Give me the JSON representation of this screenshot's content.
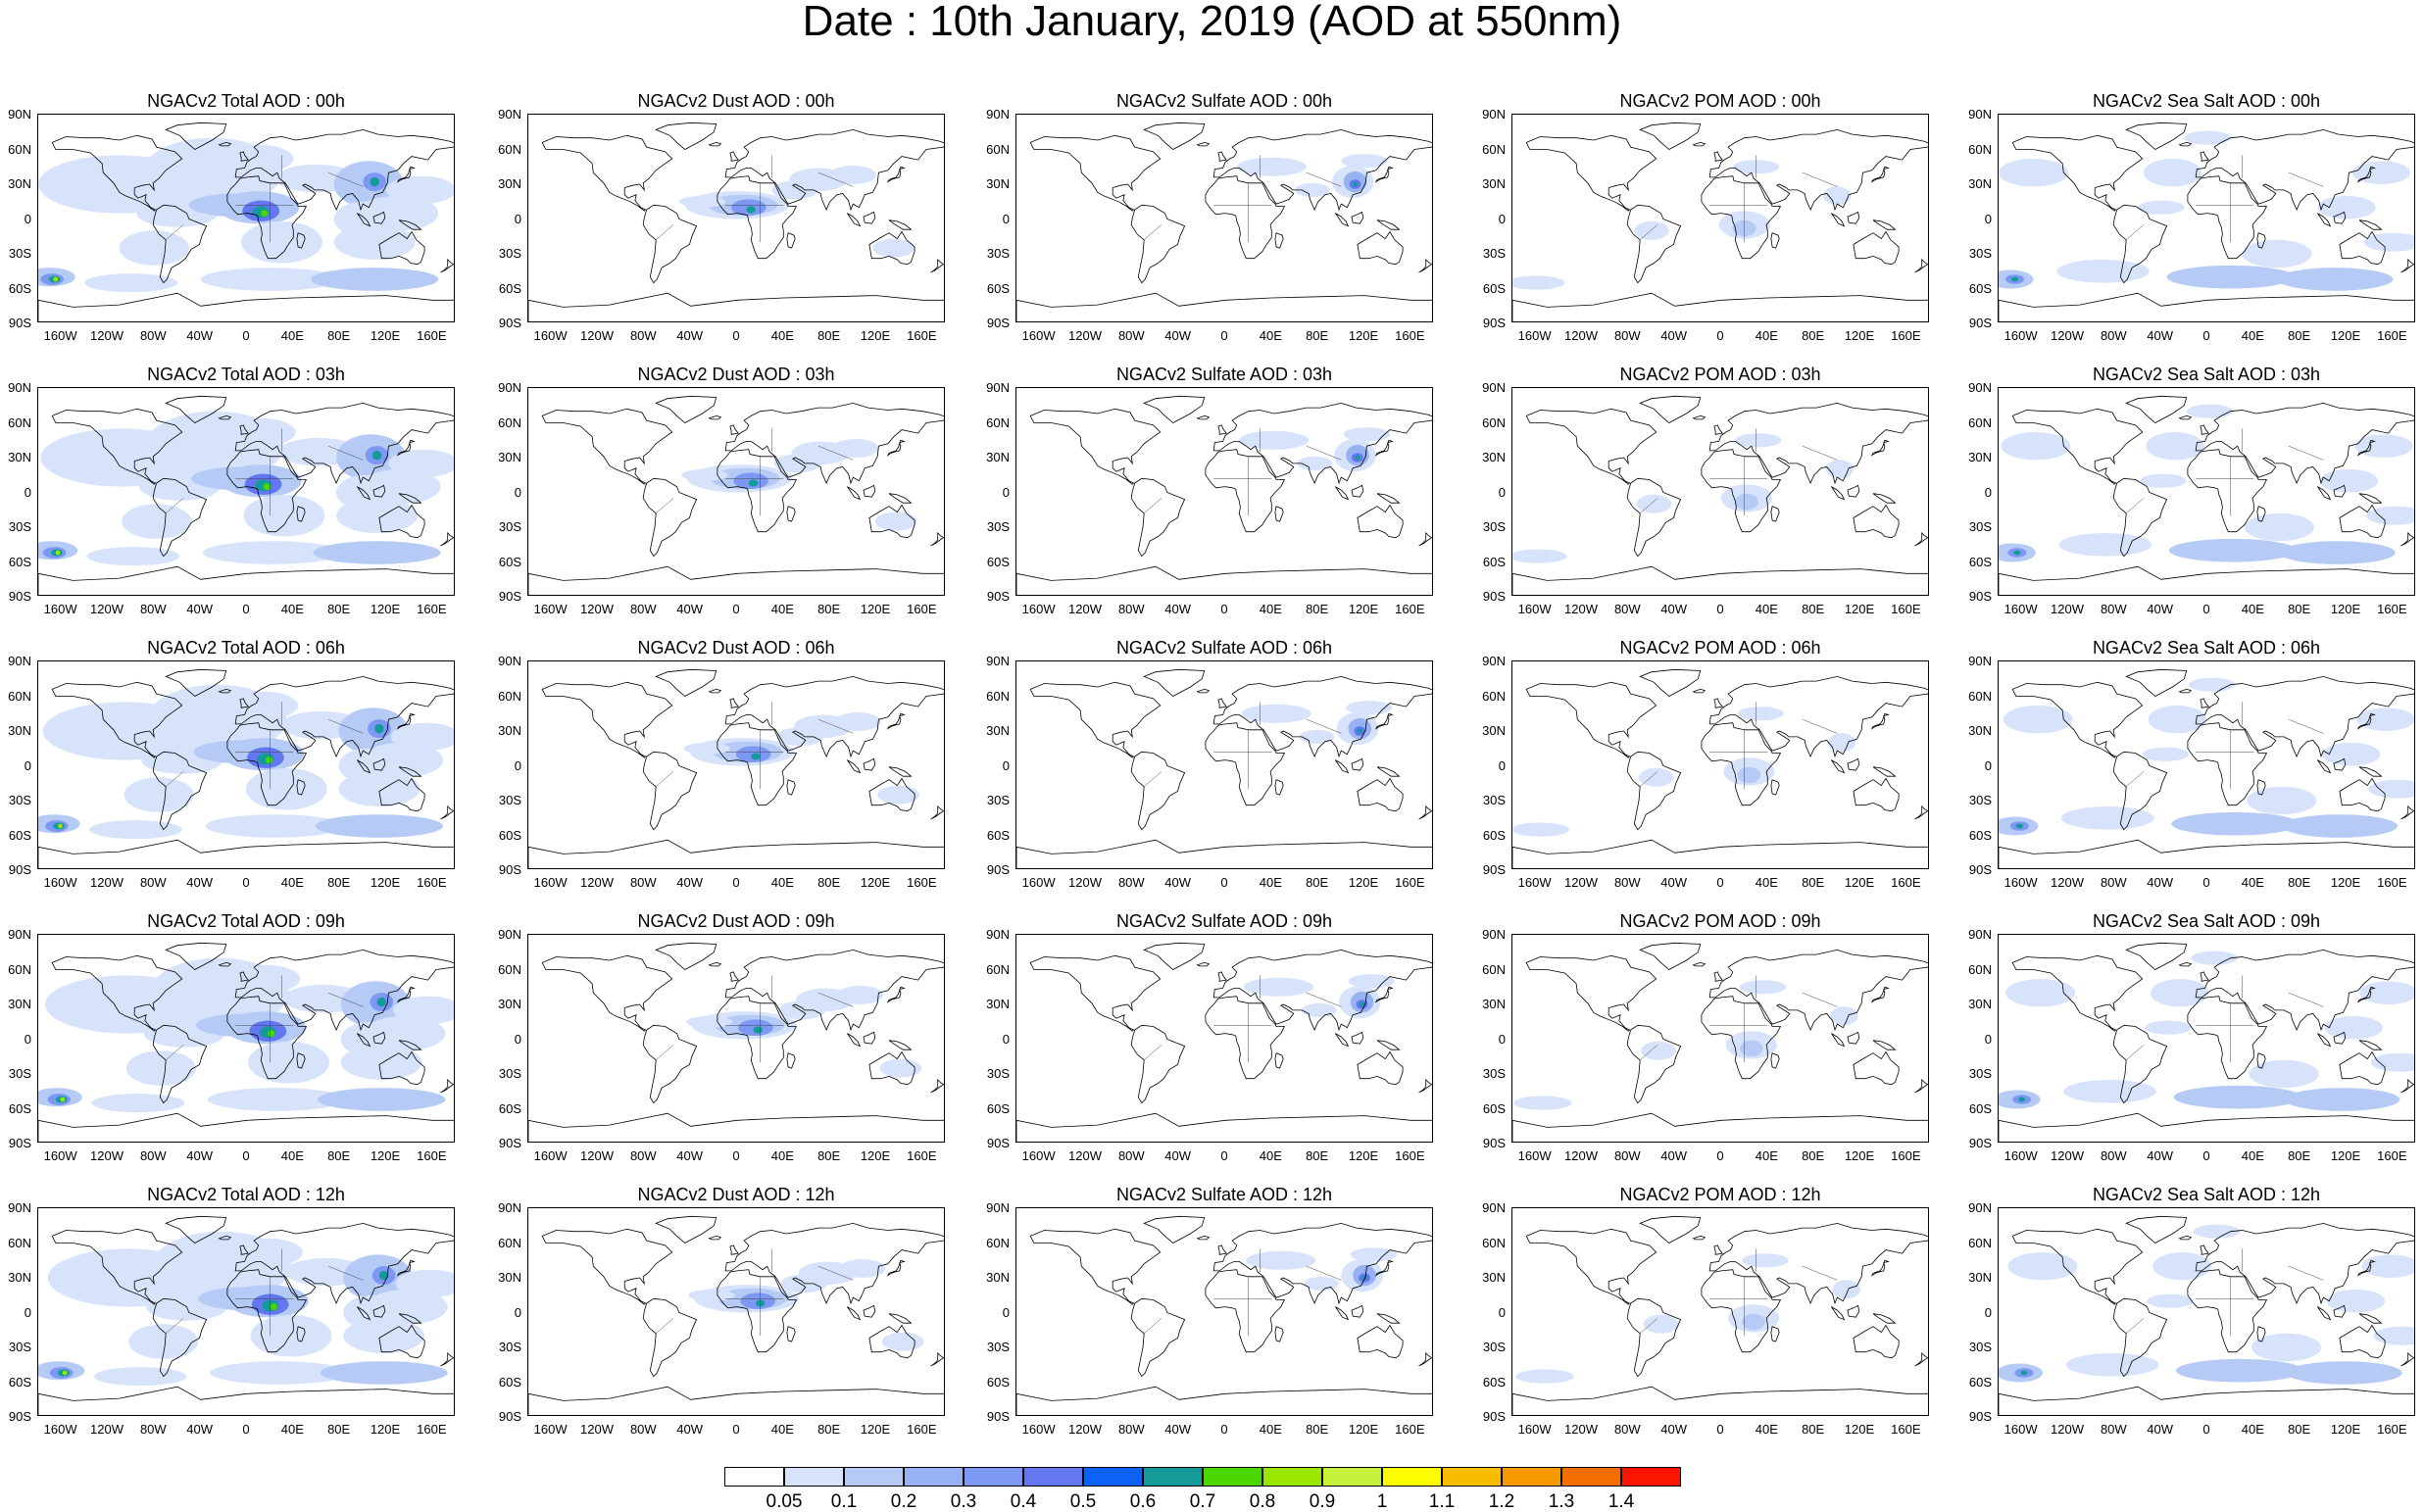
{
  "title": "Date : 10th January, 2019 (AOD at 550nm)",
  "panels": [
    [
      "NGACv2 Total AOD : 00h",
      "NGACv2 Dust AOD : 00h",
      "NGACv2 Sulfate AOD : 00h",
      "NGACv2 POM AOD : 00h",
      "NGACv2 Sea Salt AOD : 00h"
    ],
    [
      "NGACv2 Total AOD : 03h",
      "NGACv2 Dust AOD : 03h",
      "NGACv2 Sulfate AOD : 03h",
      "NGACv2 POM AOD : 03h",
      "NGACv2 Sea Salt AOD : 03h"
    ],
    [
      "NGACv2 Total AOD : 06h",
      "NGACv2 Dust AOD : 06h",
      "NGACv2 Sulfate AOD : 06h",
      "NGACv2 POM AOD : 06h",
      "NGACv2 Sea Salt AOD : 06h"
    ],
    [
      "NGACv2 Total AOD : 09h",
      "NGACv2 Dust AOD : 09h",
      "NGACv2 Sulfate AOD : 09h",
      "NGACv2 POM AOD : 09h",
      "NGACv2 Sea Salt  AOD : 09h"
    ],
    [
      "NGACv2 Total AOD  : 12h",
      "NGACv2 Dust AOD : 12h",
      "NGACv2 Sulfate AOD : 12h",
      "NGACv2 POM  AOD : 12h",
      "NGACv2 Sea Salt  AOD : 12h"
    ]
  ],
  "lat_ticks": [
    "90N",
    "60N",
    "30N",
    "0",
    "30S",
    "60S",
    "90S"
  ],
  "lon_ticks": [
    "160W",
    "120W",
    "80W",
    "40W",
    "0",
    "40E",
    "80E",
    "120E",
    "160E"
  ],
  "colorbar": {
    "labels": [
      "0.05",
      "0.1",
      "0.2",
      "0.3",
      "0.4",
      "0.5",
      "0.6",
      "0.7",
      "0.8",
      "0.9",
      "1",
      "1.1",
      "1.2",
      "1.3",
      "1.4"
    ],
    "colors": [
      "#ffffff",
      "#d7e3fb",
      "#b5cbf6",
      "#97b2f3",
      "#7d98f2",
      "#6277f0",
      "#0d62f5",
      "#139a99",
      "#4cd600",
      "#99e600",
      "#c5f03b",
      "#fdfd00",
      "#f9bd00",
      "#f89800",
      "#f46e00",
      "#fb1400"
    ]
  }
}
